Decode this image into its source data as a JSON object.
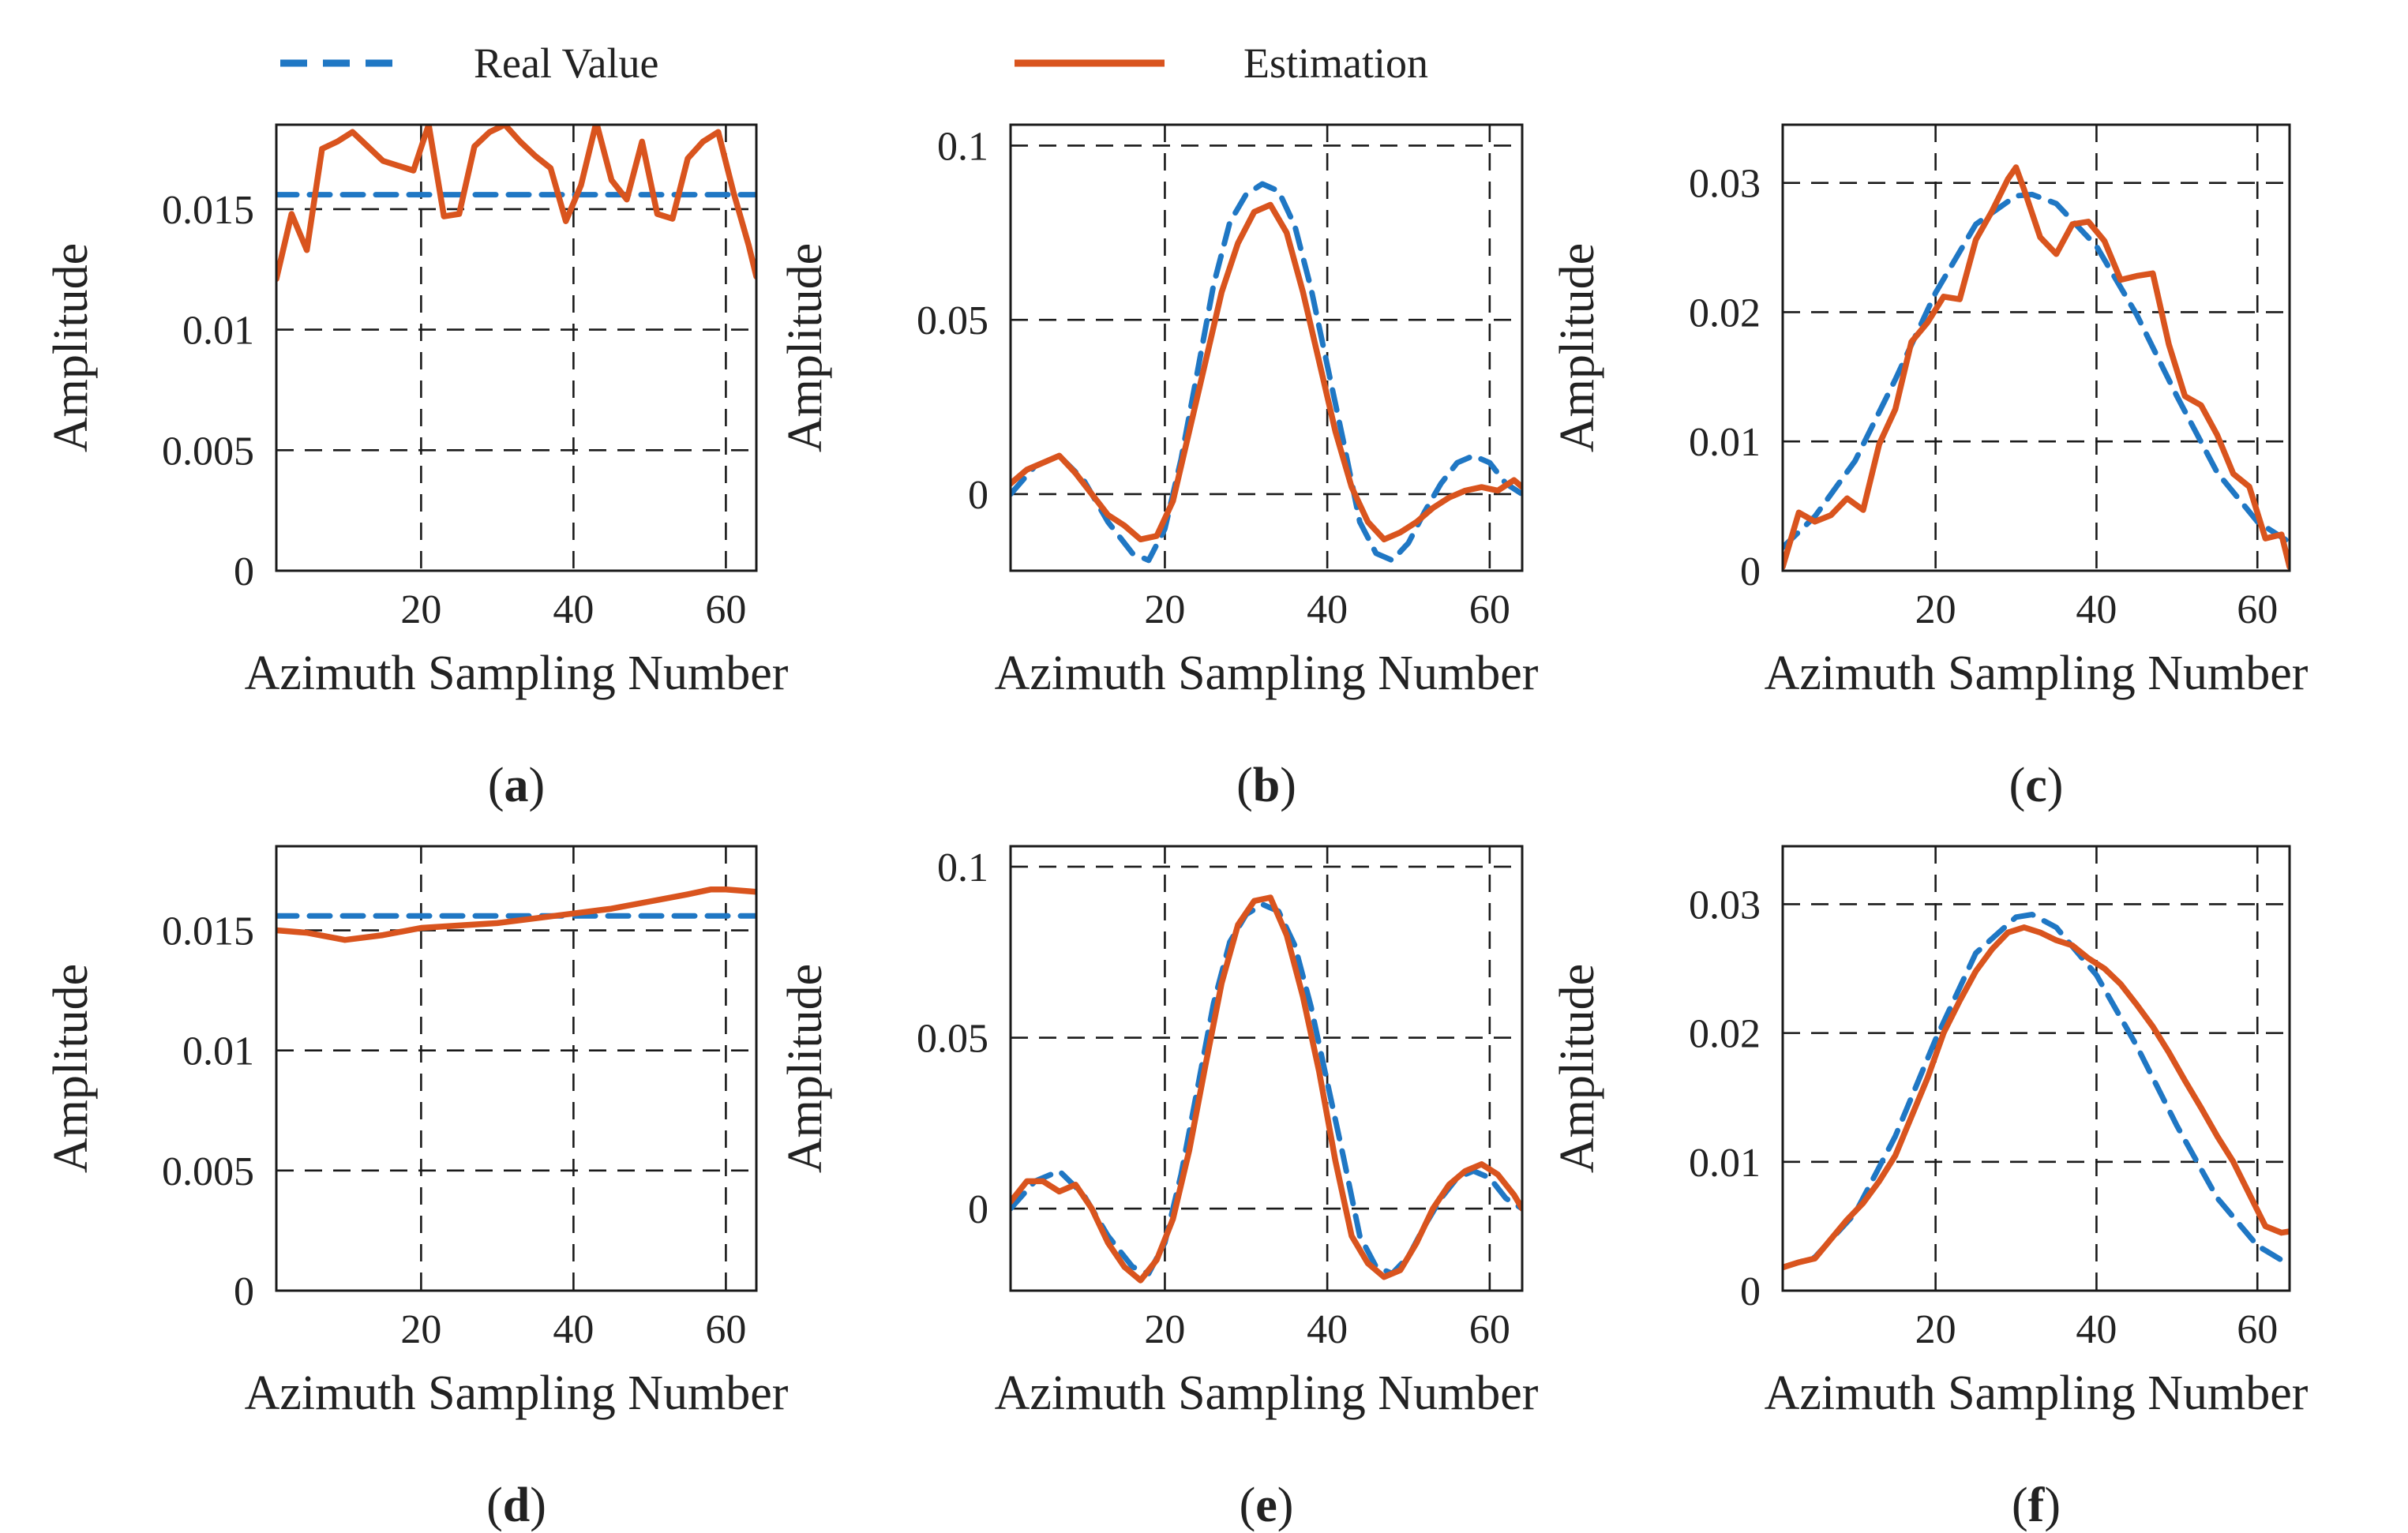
{
  "legend": {
    "items": [
      {
        "name": "Real Value",
        "color": "#1f77c4",
        "style": "dashed"
      },
      {
        "name": "Estimation",
        "color": "#d9541e",
        "style": "solid"
      }
    ]
  },
  "chart_data": [
    {
      "type": "line",
      "panel": "a",
      "caption": "a",
      "xlabel": "Azimuth Sampling Number",
      "ylabel": "Amplitude",
      "xlim": [
        1,
        64
      ],
      "ylim": [
        0,
        0.0185
      ],
      "xticks": [
        20,
        40,
        60
      ],
      "xtick_labels": [
        "20",
        "40",
        "60"
      ],
      "yticks": [
        0,
        0.005,
        0.01,
        0.015
      ],
      "ytick_labels": [
        "0",
        "0.005",
        "0.01",
        "0.015"
      ],
      "series": [
        {
          "name": "Real Value",
          "x": [
            1,
            64
          ],
          "y": [
            0.0156,
            0.0156
          ]
        },
        {
          "name": "Estimation",
          "x": [
            1,
            3,
            5,
            7,
            9,
            11,
            13,
            15,
            17,
            19,
            21,
            23,
            25,
            27,
            29,
            31,
            33,
            35,
            37,
            39,
            41,
            43,
            45,
            47,
            49,
            51,
            53,
            55,
            57,
            59,
            61,
            63,
            64
          ],
          "y": [
            0.0121,
            0.0148,
            0.0133,
            0.0175,
            0.0178,
            0.0182,
            0.0176,
            0.017,
            0.0168,
            0.0166,
            0.0185,
            0.0147,
            0.0148,
            0.0176,
            0.0182,
            0.0185,
            0.0178,
            0.0172,
            0.0167,
            0.0145,
            0.016,
            0.0186,
            0.0162,
            0.0154,
            0.0178,
            0.0148,
            0.0146,
            0.0171,
            0.0178,
            0.0182,
            0.0157,
            0.0135,
            0.0122
          ]
        }
      ]
    },
    {
      "type": "line",
      "panel": "b",
      "caption": "b",
      "xlabel": "Azimuth Sampling Number",
      "ylabel": "Amplitude",
      "xlim": [
        1,
        64
      ],
      "ylim": [
        -0.022,
        0.106
      ],
      "xticks": [
        20,
        40,
        60
      ],
      "xtick_labels": [
        "20",
        "40",
        "60"
      ],
      "yticks": [
        0,
        0.05,
        0.1
      ],
      "ytick_labels": [
        "0",
        "0.05",
        "0.1"
      ],
      "series": [
        {
          "name": "Real Value",
          "x": [
            1,
            4,
            7,
            10,
            13,
            16,
            18,
            20,
            22,
            24,
            26,
            28,
            30,
            32,
            33,
            34,
            36,
            38,
            40,
            42,
            44,
            46,
            48,
            50,
            52,
            54,
            56,
            58,
            60,
            62,
            64
          ],
          "y": [
            0,
            0.008,
            0.011,
            0.004,
            -0.008,
            -0.017,
            -0.019,
            -0.01,
            0.01,
            0.035,
            0.06,
            0.078,
            0.086,
            0.089,
            0.088,
            0.087,
            0.077,
            0.059,
            0.037,
            0.015,
            -0.008,
            -0.017,
            -0.019,
            -0.014,
            -0.005,
            0.003,
            0.009,
            0.011,
            0.009,
            0.003,
            0
          ]
        },
        {
          "name": "Estimation",
          "x": [
            1,
            3,
            5,
            7,
            9,
            11,
            13,
            15,
            17,
            19,
            21,
            23,
            25,
            27,
            29,
            31,
            33,
            35,
            37,
            39,
            41,
            43,
            45,
            47,
            49,
            51,
            53,
            55,
            57,
            59,
            61,
            63,
            64
          ],
          "y": [
            0.003,
            0.007,
            0.009,
            0.011,
            0.006,
            0.0,
            -0.006,
            -0.009,
            -0.013,
            -0.012,
            -0.002,
            0.018,
            0.038,
            0.058,
            0.072,
            0.081,
            0.083,
            0.075,
            0.058,
            0.038,
            0.018,
            0.002,
            -0.008,
            -0.013,
            -0.011,
            -0.008,
            -0.004,
            -0.001,
            0.001,
            0.002,
            0.001,
            0.004,
            0.002
          ]
        }
      ]
    },
    {
      "type": "line",
      "panel": "c",
      "caption": "c",
      "xlabel": "Azimuth Sampling Number",
      "ylabel": "Amplitude",
      "xlim": [
        1,
        64
      ],
      "ylim": [
        0,
        0.0345
      ],
      "xticks": [
        20,
        40,
        60
      ],
      "xtick_labels": [
        "20",
        "40",
        "60"
      ],
      "yticks": [
        0,
        0.01,
        0.02,
        0.03
      ],
      "ytick_labels": [
        "0",
        "0.01",
        "0.02",
        "0.03"
      ],
      "series": [
        {
          "name": "Real Value",
          "x": [
            1,
            5,
            10,
            15,
            20,
            25,
            30,
            32,
            35,
            40,
            45,
            50,
            55,
            60,
            64
          ],
          "y": [
            0.0018,
            0.0042,
            0.0085,
            0.0148,
            0.0215,
            0.0268,
            0.029,
            0.0291,
            0.0284,
            0.0251,
            0.0198,
            0.0135,
            0.0076,
            0.0038,
            0.0022
          ]
        },
        {
          "name": "Estimation",
          "x": [
            1,
            3,
            5,
            7,
            9,
            11,
            13,
            15,
            17,
            19,
            21,
            23,
            25,
            27,
            29,
            30,
            31,
            33,
            35,
            37,
            39,
            41,
            43,
            45,
            47,
            49,
            51,
            53,
            55,
            57,
            59,
            61,
            63,
            64
          ],
          "y": [
            0.0003,
            0.0045,
            0.0038,
            0.0043,
            0.0056,
            0.0047,
            0.0098,
            0.0125,
            0.0177,
            0.0192,
            0.0212,
            0.021,
            0.0256,
            0.0278,
            0.0303,
            0.0312,
            0.0295,
            0.0258,
            0.0245,
            0.0268,
            0.027,
            0.0255,
            0.0225,
            0.0228,
            0.023,
            0.0175,
            0.0135,
            0.0128,
            0.0105,
            0.0075,
            0.0065,
            0.0025,
            0.0028,
            0.0003
          ]
        }
      ]
    },
    {
      "type": "line",
      "panel": "d",
      "caption": "d",
      "xlabel": "Azimuth Sampling Number",
      "ylabel": "Amplitude",
      "xlim": [
        1,
        64
      ],
      "ylim": [
        0,
        0.0185
      ],
      "xticks": [
        20,
        40,
        60
      ],
      "xtick_labels": [
        "20",
        "40",
        "60"
      ],
      "yticks": [
        0,
        0.005,
        0.01,
        0.015
      ],
      "ytick_labels": [
        "0",
        "0.005",
        "0.01",
        "0.015"
      ],
      "series": [
        {
          "name": "Real Value",
          "x": [
            1,
            64
          ],
          "y": [
            0.0156,
            0.0156
          ]
        },
        {
          "name": "Estimation",
          "x": [
            1,
            5,
            10,
            15,
            20,
            25,
            30,
            35,
            40,
            45,
            50,
            55,
            58,
            60,
            64
          ],
          "y": [
            0.015,
            0.0149,
            0.0146,
            0.0148,
            0.0151,
            0.0152,
            0.0153,
            0.0155,
            0.0157,
            0.0159,
            0.0162,
            0.0165,
            0.0167,
            0.0167,
            0.0166
          ]
        }
      ]
    },
    {
      "type": "line",
      "panel": "e",
      "caption": "e",
      "xlabel": "Azimuth Sampling Number",
      "ylabel": "Amplitude",
      "xlim": [
        1,
        64
      ],
      "ylim": [
        -0.024,
        0.106
      ],
      "xticks": [
        20,
        40,
        60
      ],
      "xtick_labels": [
        "20",
        "40",
        "60"
      ],
      "yticks": [
        0,
        0.05,
        0.1
      ],
      "ytick_labels": [
        "0",
        "0.05",
        "0.1"
      ],
      "series": [
        {
          "name": "Real Value",
          "x": [
            1,
            4,
            7,
            10,
            13,
            16,
            18,
            20,
            22,
            24,
            26,
            28,
            30,
            32,
            33,
            34,
            36,
            38,
            40,
            42,
            44,
            46,
            48,
            50,
            52,
            54,
            56,
            58,
            60,
            62,
            64
          ],
          "y": [
            0,
            0.008,
            0.011,
            0.004,
            -0.008,
            -0.017,
            -0.019,
            -0.01,
            0.01,
            0.035,
            0.06,
            0.078,
            0.086,
            0.089,
            0.088,
            0.087,
            0.077,
            0.059,
            0.037,
            0.015,
            -0.008,
            -0.017,
            -0.019,
            -0.014,
            -0.005,
            0.003,
            0.009,
            0.011,
            0.009,
            0.003,
            0
          ]
        },
        {
          "name": "Estimation",
          "x": [
            1,
            3,
            5,
            7,
            9,
            11,
            13,
            15,
            17,
            19,
            21,
            23,
            25,
            27,
            29,
            31,
            33,
            35,
            37,
            39,
            41,
            43,
            45,
            47,
            49,
            51,
            53,
            55,
            57,
            59,
            61,
            63,
            64
          ],
          "y": [
            0.002,
            0.008,
            0.008,
            0.005,
            0.007,
            0.0,
            -0.01,
            -0.017,
            -0.021,
            -0.015,
            -0.003,
            0.017,
            0.042,
            0.066,
            0.083,
            0.09,
            0.091,
            0.08,
            0.062,
            0.04,
            0.014,
            -0.008,
            -0.016,
            -0.02,
            -0.018,
            -0.01,
            0.0,
            0.007,
            0.011,
            0.013,
            0.01,
            0.004,
            0.0
          ]
        }
      ]
    },
    {
      "type": "line",
      "panel": "f",
      "caption": "f",
      "xlabel": "Azimuth Sampling Number",
      "ylabel": "Amplitude",
      "xlim": [
        1,
        64
      ],
      "ylim": [
        0,
        0.0345
      ],
      "xticks": [
        20,
        40,
        60
      ],
      "xtick_labels": [
        "20",
        "40",
        "60"
      ],
      "yticks": [
        0,
        0.01,
        0.02,
        0.03
      ],
      "ytick_labels": [
        "0",
        "0.01",
        "0.02",
        "0.03"
      ],
      "series": [
        {
          "name": "Real Value",
          "x": [
            1,
            5,
            10,
            15,
            20,
            25,
            30,
            32,
            35,
            40,
            45,
            50,
            55,
            60,
            64
          ],
          "y": [
            0.0018,
            0.0026,
            0.006,
            0.012,
            0.0195,
            0.0262,
            0.029,
            0.0292,
            0.0282,
            0.0245,
            0.019,
            0.0128,
            0.0072,
            0.0035,
            0.002
          ]
        },
        {
          "name": "Estimation",
          "x": [
            1,
            3,
            5,
            7,
            9,
            11,
            13,
            15,
            17,
            19,
            21,
            23,
            25,
            27,
            29,
            31,
            33,
            35,
            37,
            39,
            41,
            43,
            45,
            47,
            49,
            51,
            53,
            55,
            57,
            59,
            61,
            63,
            64
          ],
          "y": [
            0.0018,
            0.0022,
            0.0025,
            0.004,
            0.0055,
            0.0068,
            0.0085,
            0.0105,
            0.0135,
            0.0165,
            0.02,
            0.0225,
            0.0248,
            0.0265,
            0.0278,
            0.0282,
            0.0278,
            0.0272,
            0.0268,
            0.0258,
            0.025,
            0.0238,
            0.0222,
            0.0205,
            0.0185,
            0.0163,
            0.0142,
            0.012,
            0.01,
            0.0075,
            0.005,
            0.0045,
            0.0046
          ]
        }
      ]
    }
  ]
}
